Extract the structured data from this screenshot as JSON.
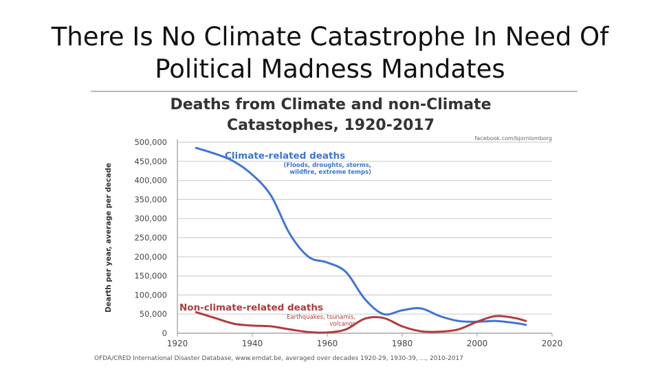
{
  "slide": {
    "title": "There Is No Climate Catastrophe In Need  Of Political Madness Mandates"
  },
  "chart_data": {
    "type": "line",
    "title_line1": "Deaths from Climate and non-Climate",
    "title_line2": "Catastophes, 1920-2017",
    "watermark": "facebook.com/bjornlomborg",
    "ylabel": "Dearth per year, average per decade",
    "xlabel": "",
    "xlim": [
      1920,
      2020
    ],
    "ylim": [
      0,
      500000
    ],
    "x_ticks": [
      1920,
      1940,
      1960,
      1980,
      2000,
      2020
    ],
    "x_tick_labels": [
      "1920",
      "1940",
      "1960",
      "1980",
      "2000",
      "2020"
    ],
    "y_ticks": [
      0,
      50000,
      100000,
      150000,
      200000,
      250000,
      300000,
      350000,
      400000,
      450000,
      500000
    ],
    "y_tick_labels": [
      "0",
      "50,000",
      "100,000",
      "150,000",
      "200,000",
      "250,000",
      "300,000",
      "350,000",
      "400,000",
      "450,000",
      "500,000"
    ],
    "grid": true,
    "source_note": "OFDA/CRED International Disaster Database, www.emdat.be, averaged over decades 1920-29, 1930-39, ..., 2010-2017",
    "series": [
      {
        "name": "Climate-related deaths",
        "sublabel_line1": "(Floods, droughts, storms,",
        "sublabel_line2": "wildfire, extreme temps)",
        "color": "#3f74d6",
        "x": [
          1925,
          1930,
          1935,
          1940,
          1945,
          1950,
          1955,
          1960,
          1965,
          1970,
          1975,
          1980,
          1985,
          1990,
          1995,
          2000,
          2005,
          2010,
          2013
        ],
        "y": [
          485000,
          470000,
          450000,
          415000,
          360000,
          260000,
          200000,
          185000,
          160000,
          90000,
          50000,
          60000,
          65000,
          45000,
          32000,
          30000,
          32000,
          27000,
          22000
        ]
      },
      {
        "name": "Non-climate-related deaths",
        "sublabel_line1": "Earthquakes, tsunamis,",
        "sublabel_line2": "volcanos",
        "color": "#b33a3a",
        "x": [
          1925,
          1930,
          1935,
          1940,
          1945,
          1950,
          1955,
          1960,
          1965,
          1970,
          1975,
          1980,
          1985,
          1990,
          1995,
          2000,
          2005,
          2010,
          2013
        ],
        "y": [
          55000,
          40000,
          25000,
          20000,
          18000,
          10000,
          3000,
          2000,
          10000,
          38000,
          40000,
          18000,
          5000,
          4000,
          10000,
          30000,
          45000,
          40000,
          32000
        ]
      }
    ]
  }
}
